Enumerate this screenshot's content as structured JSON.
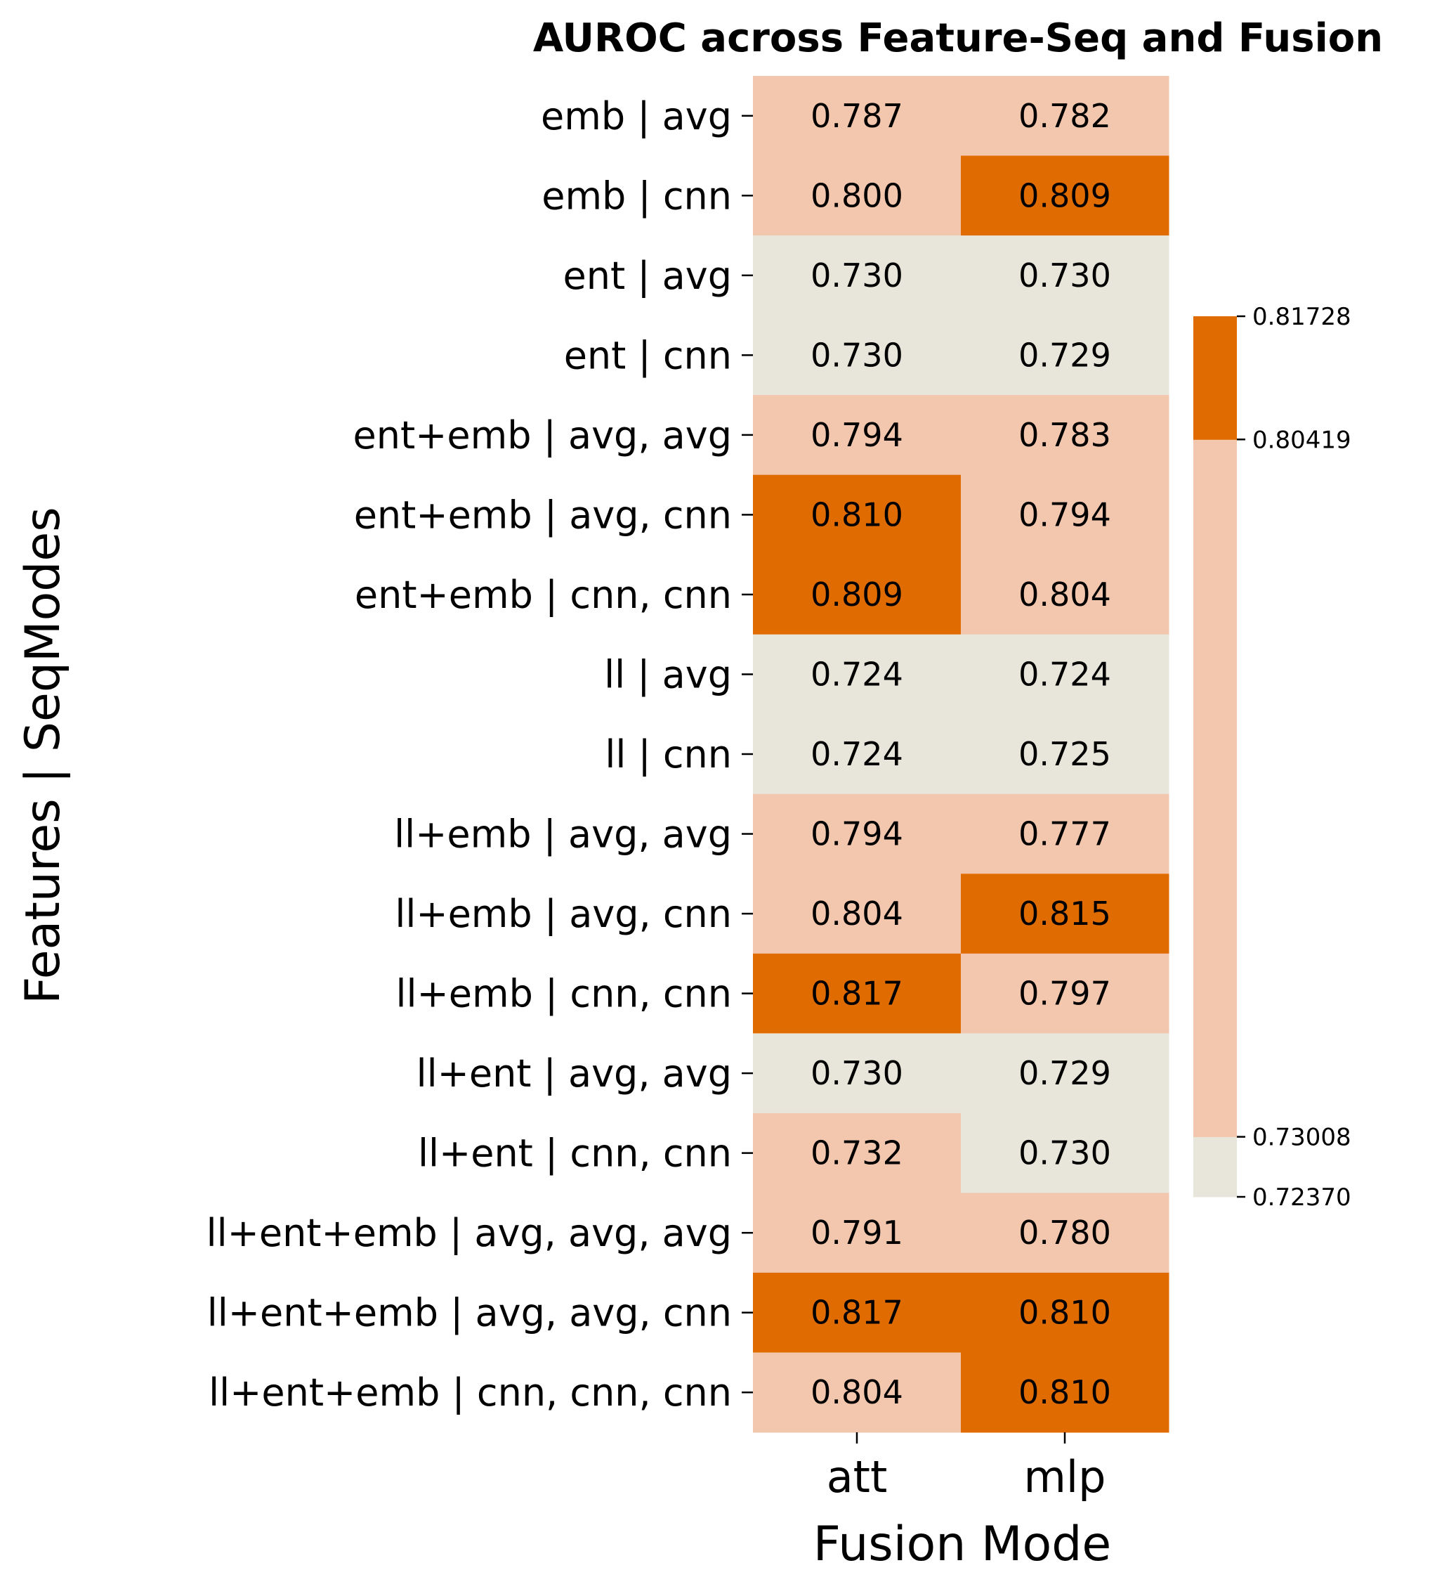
{
  "chart_data": {
    "type": "heatmap",
    "title": "AUROC across Feature-Seq and Fusion",
    "xlabel": "Fusion Mode",
    "ylabel": "Features | SeqModes",
    "columns": [
      "att",
      "mlp"
    ],
    "rows": [
      "emb | avg",
      "emb | cnn",
      "ent | avg",
      "ent | cnn",
      "ent+emb | avg, avg",
      "ent+emb | avg, cnn",
      "ent+emb | cnn, cnn",
      "ll | avg",
      "ll | cnn",
      "ll+emb | avg, avg",
      "ll+emb | avg, cnn",
      "ll+emb | cnn, cnn",
      "ll+ent | avg, avg",
      "ll+ent | cnn, cnn",
      "ll+ent+emb | avg, avg, avg",
      "ll+ent+emb | avg, avg, cnn",
      "ll+ent+emb | cnn, cnn, cnn"
    ],
    "values": [
      [
        0.787,
        0.782
      ],
      [
        0.8,
        0.809
      ],
      [
        0.73,
        0.73
      ],
      [
        0.73,
        0.729
      ],
      [
        0.794,
        0.783
      ],
      [
        0.81,
        0.794
      ],
      [
        0.809,
        0.804
      ],
      [
        0.724,
        0.724
      ],
      [
        0.724,
        0.725
      ],
      [
        0.794,
        0.777
      ],
      [
        0.804,
        0.815
      ],
      [
        0.817,
        0.797
      ],
      [
        0.73,
        0.729
      ],
      [
        0.732,
        0.73
      ],
      [
        0.791,
        0.78
      ],
      [
        0.817,
        0.81
      ],
      [
        0.804,
        0.81
      ]
    ],
    "cell_labels": [
      [
        "0.787",
        "0.782"
      ],
      [
        "0.800",
        "0.809"
      ],
      [
        "0.730",
        "0.730"
      ],
      [
        "0.730",
        "0.729"
      ],
      [
        "0.794",
        "0.783"
      ],
      [
        "0.810",
        "0.794"
      ],
      [
        "0.809",
        "0.804"
      ],
      [
        "0.724",
        "0.724"
      ],
      [
        "0.724",
        "0.725"
      ],
      [
        "0.794",
        "0.777"
      ],
      [
        "0.804",
        "0.815"
      ],
      [
        "0.817",
        "0.797"
      ],
      [
        "0.730",
        "0.729"
      ],
      [
        "0.732",
        "0.730"
      ],
      [
        "0.791",
        "0.780"
      ],
      [
        "0.817",
        "0.810"
      ],
      [
        "0.804",
        "0.810"
      ]
    ],
    "colorbar": {
      "boundaries": [
        0.7237,
        0.73008,
        0.80419,
        0.81728
      ],
      "tick_labels": [
        "0.72370",
        "0.73008",
        "0.80419",
        "0.81728"
      ],
      "colors": [
        "#e8e6db",
        "#f3c6ae",
        "#e06b00"
      ],
      "placement": "right"
    }
  }
}
